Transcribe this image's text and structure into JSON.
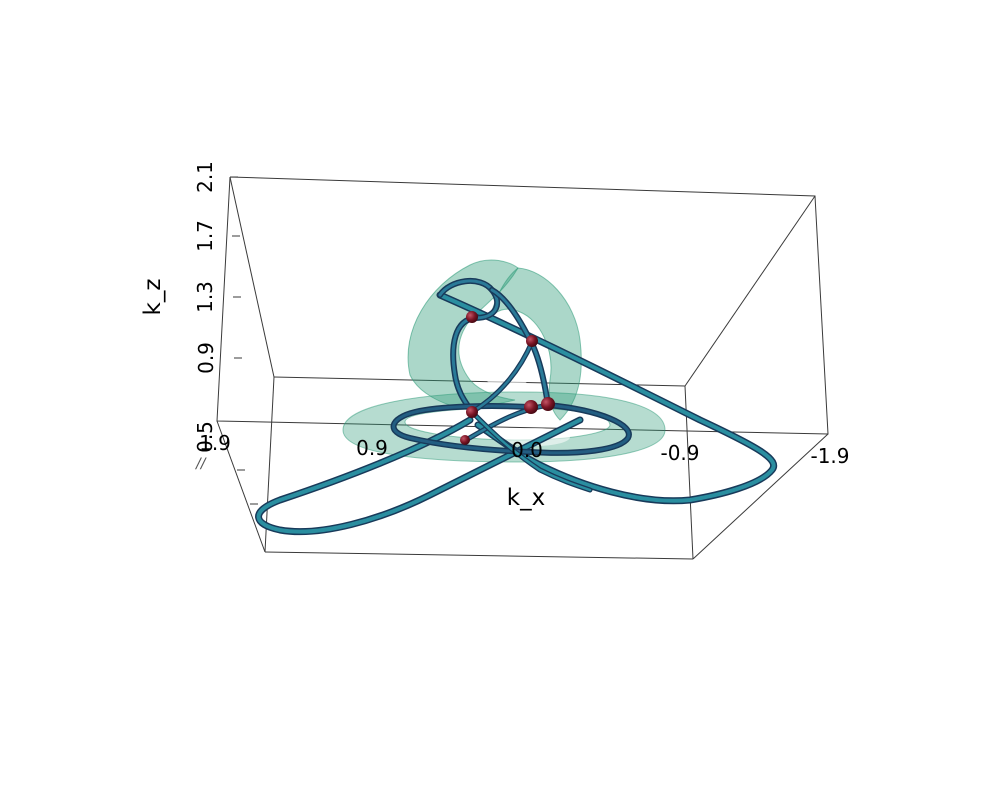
{
  "axes": {
    "x": {
      "title": "k_x",
      "ticks": [
        "1.9",
        "0.9",
        "0.0",
        "-0.9",
        "-1.9"
      ]
    },
    "z": {
      "title": "k_z",
      "ticks": [
        "0.5",
        "0.9",
        "1.3",
        "1.7",
        "2.1"
      ]
    }
  },
  "colors": {
    "background": "#ffffff",
    "box": "#3a3a3a",
    "surface": "#2e9a78",
    "curve": "#1f6b86",
    "curve_dark": "#183a5a",
    "points": "#7a1525"
  },
  "scene": {
    "surface_description_label": "",
    "point_count": 6
  }
}
